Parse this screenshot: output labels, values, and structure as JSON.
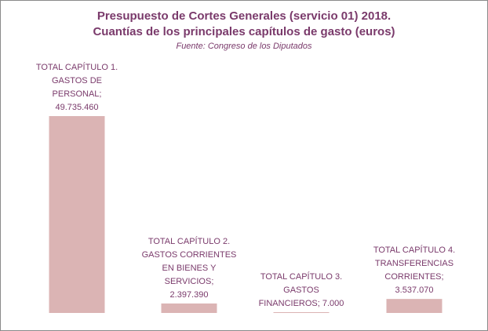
{
  "chart_data": {
    "type": "bar",
    "title": "Presupuesto de Cortes Generales (servicio 01) 2018.",
    "title2": "Cuantías de los principales capítulos de gasto (euros)",
    "subtitle": "Fuente:  Congreso de los Diputados",
    "categories": [
      "TOTAL CAPÍTULO 1. GASTOS DE PERSONAL",
      "TOTAL CAPÍTULO 2. GASTOS CORRIENTES EN BIENES Y SERVICIOS",
      "TOTAL CAPÍTULO 3. GASTOS FINANCIEROS",
      "TOTAL CAPÍTULO 4. TRANSFERENCIAS CORRIENTES"
    ],
    "values": [
      49735460,
      2397390,
      7000,
      3537070
    ],
    "data_labels": [
      [
        "TOTAL CAPÍTULO 1.",
        "GASTOS DE",
        "PERSONAL;",
        "49.735.460"
      ],
      [
        "TOTAL CAPÍTULO 2.",
        "GASTOS CORRIENTES",
        "EN BIENES Y",
        "SERVICIOS;",
        "2.397.390"
      ],
      [
        "TOTAL CAPÍTULO 3.",
        "GASTOS",
        "FINANCIEROS; 7.000"
      ],
      [
        "TOTAL CAPÍTULO 4.",
        "TRANSFERENCIAS",
        "CORRIENTES;",
        "3.537.070"
      ]
    ],
    "ylim": [
      0,
      49735460
    ],
    "xlabel": "",
    "ylabel": "",
    "grid": false,
    "legend": "none",
    "colors": {
      "bar": "#dbb4b4",
      "text": "#7a3a6b"
    }
  }
}
